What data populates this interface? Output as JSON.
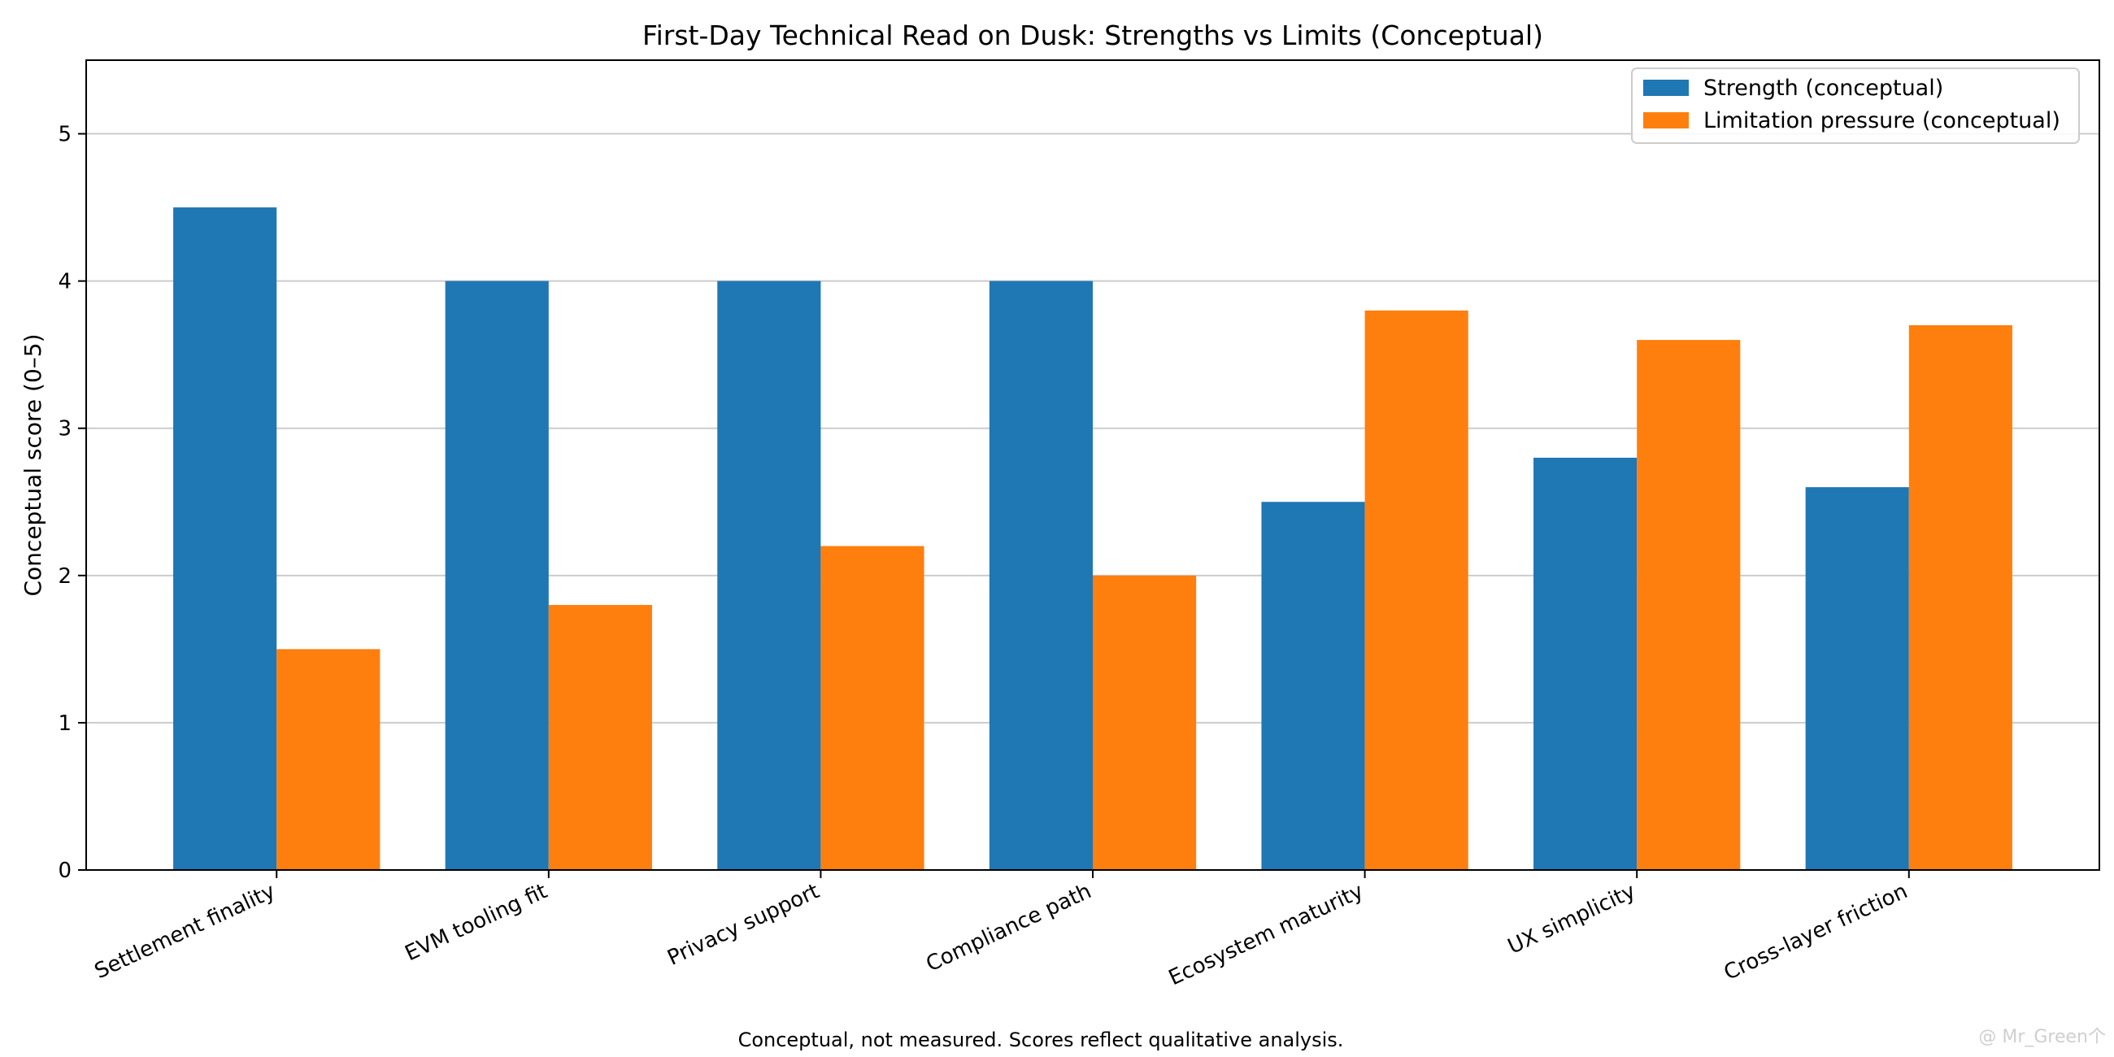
{
  "chart_data": {
    "type": "bar",
    "title": "First-Day Technical Read on Dusk: Strengths vs Limits (Conceptual)",
    "xlabel": "",
    "ylabel": "Conceptual score (0–5)",
    "ylim": [
      0,
      5.5
    ],
    "yticks": [
      0,
      1,
      2,
      3,
      4,
      5
    ],
    "grid": "horizontal",
    "legend_position": "top-right",
    "categories": [
      "Settlement finality",
      "EVM tooling fit",
      "Privacy support",
      "Compliance path",
      "Ecosystem maturity",
      "UX simplicity",
      "Cross-layer friction"
    ],
    "series": [
      {
        "name": "Strength (conceptual)",
        "color": "#1f77b4",
        "values": [
          4.5,
          4.0,
          4.0,
          4.0,
          2.5,
          2.8,
          2.6
        ]
      },
      {
        "name": "Limitation pressure (conceptual)",
        "color": "#ff7f0e",
        "values": [
          1.5,
          1.8,
          2.2,
          2.0,
          3.8,
          3.6,
          3.7
        ]
      }
    ],
    "footnote": "Conceptual, not measured. Scores reflect qualitative analysis."
  },
  "watermark": "@ Mr_Green个"
}
